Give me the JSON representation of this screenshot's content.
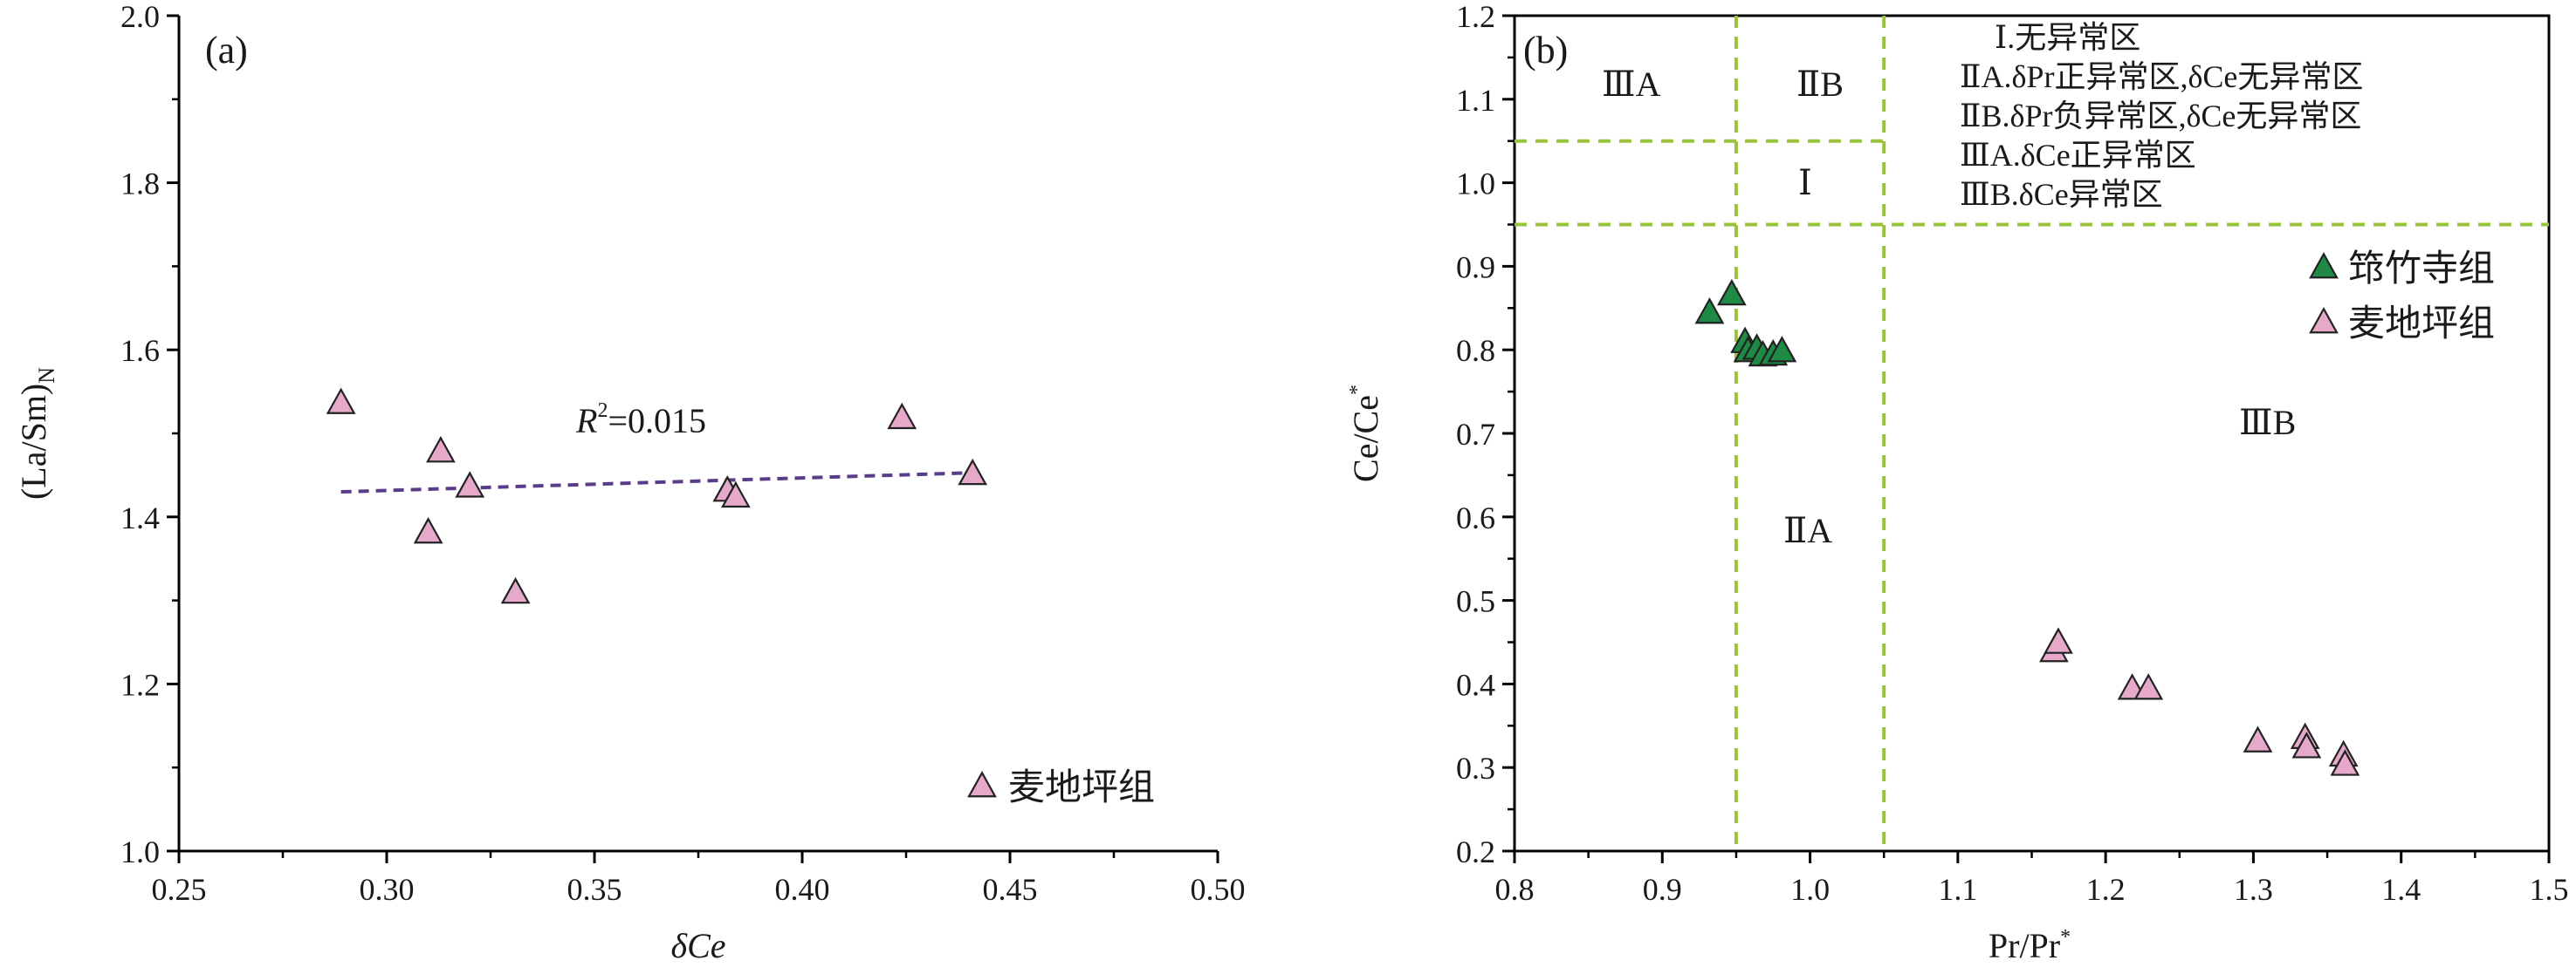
{
  "chart_data": [
    {
      "panel": "(a)",
      "type": "scatter",
      "xlabel": "δCe",
      "ylabel": "(La/Sm)N",
      "xlim": [
        0.25,
        0.5
      ],
      "ylim": [
        1.0,
        2.0
      ],
      "x_ticks": [
        "0.25",
        "0.30",
        "0.35",
        "0.40",
        "0.45",
        "0.50"
      ],
      "y_ticks": [
        "1.0",
        "1.2",
        "1.4",
        "1.6",
        "1.8",
        "2.0"
      ],
      "x_tick_values": [
        0.25,
        0.3,
        0.35,
        0.4,
        0.45,
        0.5
      ],
      "y_tick_values": [
        1.0,
        1.2,
        1.4,
        1.6,
        1.8,
        2.0
      ],
      "annotation": "R2=0.015",
      "trendline": {
        "x": [
          0.289,
          0.442
        ],
        "y": [
          1.43,
          1.453
        ],
        "color": "#5a3d8a",
        "style": "dashed"
      },
      "legend": {
        "label": "麦地坪组",
        "position": "bottom-right"
      },
      "series": [
        {
          "name": "麦地坪组",
          "marker": "triangle",
          "color": "#e6a9c9",
          "points": [
            {
              "x": 0.289,
              "y": 1.535
            },
            {
              "x": 0.313,
              "y": 1.477
            },
            {
              "x": 0.32,
              "y": 1.435
            },
            {
              "x": 0.31,
              "y": 1.38
            },
            {
              "x": 0.331,
              "y": 1.308
            },
            {
              "x": 0.382,
              "y": 1.43
            },
            {
              "x": 0.384,
              "y": 1.423
            },
            {
              "x": 0.424,
              "y": 1.517
            },
            {
              "x": 0.441,
              "y": 1.45
            }
          ]
        }
      ]
    },
    {
      "panel": "(b)",
      "type": "scatter",
      "xlabel": "Pr/Pr*",
      "ylabel": "Ce/Ce*",
      "xlim": [
        0.8,
        1.5
      ],
      "ylim": [
        0.2,
        1.2
      ],
      "x_ticks": [
        "0.8",
        "0.9",
        "1.0",
        "1.1",
        "1.2",
        "1.3",
        "1.4",
        "1.5"
      ],
      "y_ticks": [
        "0.2",
        "0.3",
        "0.4",
        "0.5",
        "0.6",
        "0.7",
        "0.8",
        "0.9",
        "1.0",
        "1.1",
        "1.2"
      ],
      "x_tick_values": [
        0.8,
        0.9,
        1.0,
        1.1,
        1.2,
        1.3,
        1.4,
        1.5
      ],
      "y_tick_values": [
        0.2,
        0.3,
        0.4,
        0.5,
        0.6,
        0.7,
        0.8,
        0.9,
        1.0,
        1.1,
        1.2
      ],
      "reference_lines": {
        "x": [
          0.95,
          1.05
        ],
        "y": [
          0.95,
          1.05
        ],
        "color": "#9ac23c",
        "style": "dashed"
      },
      "regions": [
        "ⅢA",
        "ⅡB",
        "Ⅰ",
        "ⅡA",
        "ⅢB"
      ],
      "notes": [
        "Ⅰ.无异常区",
        "ⅡA.δPr正异常区,δCe无异常区",
        "ⅡB.δPr负异常区,δCe无异常区",
        "ⅢA.δCe正异常区",
        "ⅢB.δCe异常区"
      ],
      "legend": {
        "position": "right",
        "entries": [
          "筇竹寺组",
          "麦地坪组"
        ]
      },
      "series": [
        {
          "name": "筇竹寺组",
          "marker": "triangle",
          "color": "#1e8a45",
          "points": [
            {
              "x": 0.932,
              "y": 0.843
            },
            {
              "x": 0.947,
              "y": 0.865
            },
            {
              "x": 0.956,
              "y": 0.808
            },
            {
              "x": 0.958,
              "y": 0.797
            },
            {
              "x": 0.964,
              "y": 0.8
            },
            {
              "x": 0.968,
              "y": 0.792
            },
            {
              "x": 0.975,
              "y": 0.793
            },
            {
              "x": 0.981,
              "y": 0.797
            }
          ]
        },
        {
          "name": "麦地坪组",
          "marker": "triangle",
          "color": "#e6a9c9",
          "points": [
            {
              "x": 1.165,
              "y": 0.438
            },
            {
              "x": 1.168,
              "y": 0.448
            },
            {
              "x": 1.218,
              "y": 0.393
            },
            {
              "x": 1.229,
              "y": 0.393
            },
            {
              "x": 1.303,
              "y": 0.33
            },
            {
              "x": 1.335,
              "y": 0.334
            },
            {
              "x": 1.336,
              "y": 0.323
            },
            {
              "x": 1.361,
              "y": 0.313
            },
            {
              "x": 1.362,
              "y": 0.302
            }
          ]
        }
      ]
    }
  ]
}
